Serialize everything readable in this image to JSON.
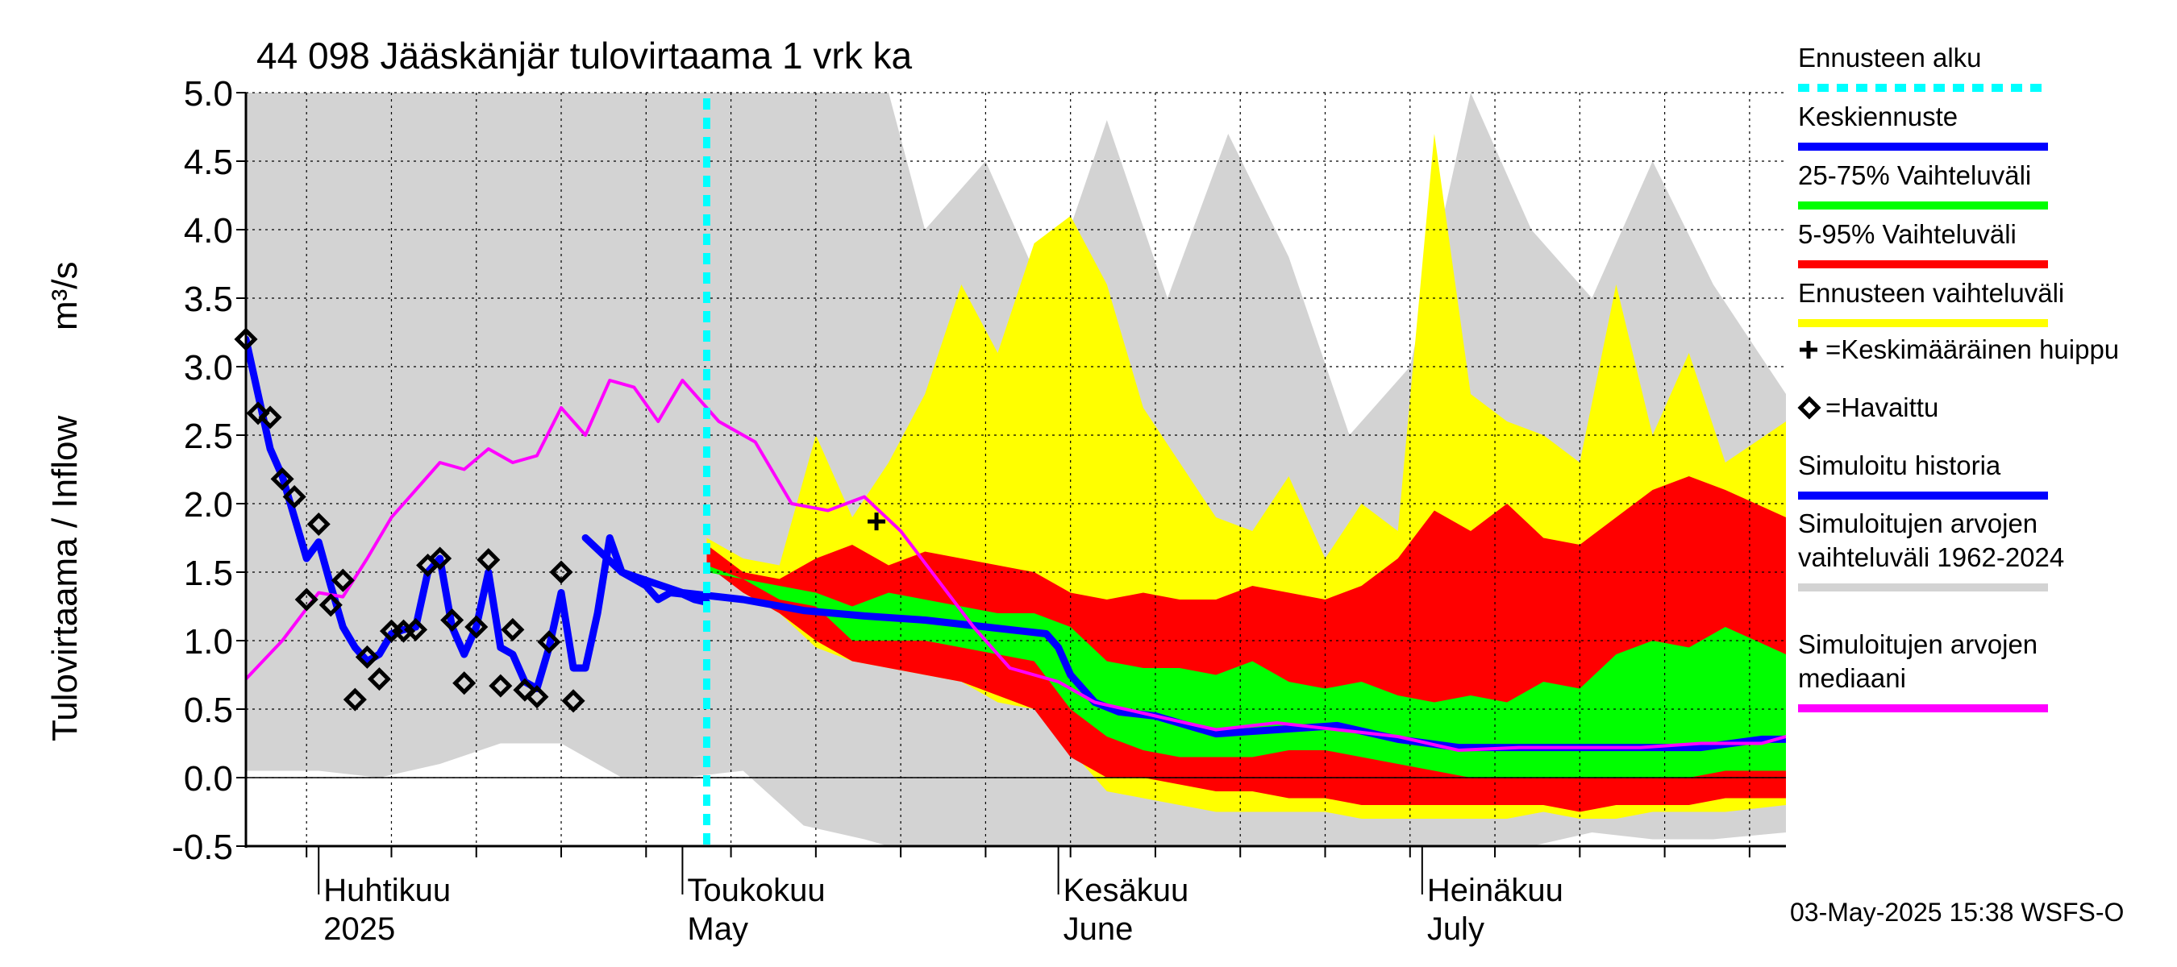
{
  "chart_data": {
    "type": "area",
    "title": "44 098 Jääskänjär tulovirtaama 1 vrk ka",
    "ylabel": "Tulovirtaama / Inflow",
    "yunit": "m³/s",
    "ylim": [
      -0.5,
      5.0
    ],
    "yticks": [
      "5.0",
      "4.5",
      "4.0",
      "3.5",
      "3.0",
      "2.5",
      "2.0",
      "1.5",
      "1.0",
      "0.5",
      "0.0",
      "-0.5"
    ],
    "xlim": [
      "2025-03-26",
      "2025-07-31"
    ],
    "grid": true,
    "legend_position": "right",
    "month_labels": [
      {
        "fi": "Huhtikuu",
        "en": "2025",
        "date": "2025-04-01"
      },
      {
        "fi": "Toukokuu",
        "en": "May",
        "date": "2025-05-01"
      },
      {
        "fi": "Kesäkuu",
        "en": "June",
        "date": "2025-06-01"
      },
      {
        "fi": "Heinäkuu",
        "en": "July",
        "date": "2025-07-01"
      }
    ],
    "forecast_start": "2025-05-03",
    "mean_peak": {
      "date": "2025-05-17",
      "value": 1.87
    },
    "observed": [
      {
        "date": "2025-03-26",
        "value": 3.2
      },
      {
        "date": "2025-03-27",
        "value": 2.66
      },
      {
        "date": "2025-03-28",
        "value": 2.63
      },
      {
        "date": "2025-03-29",
        "value": 2.18
      },
      {
        "date": "2025-03-30",
        "value": 2.05
      },
      {
        "date": "2025-03-31",
        "value": 1.3
      },
      {
        "date": "2025-04-01",
        "value": 1.85
      },
      {
        "date": "2025-04-02",
        "value": 1.26
      },
      {
        "date": "2025-04-03",
        "value": 1.44
      },
      {
        "date": "2025-04-04",
        "value": 0.57
      },
      {
        "date": "2025-04-05",
        "value": 0.88
      },
      {
        "date": "2025-04-06",
        "value": 0.72
      },
      {
        "date": "2025-04-07",
        "value": 1.07
      },
      {
        "date": "2025-04-08",
        "value": 1.07
      },
      {
        "date": "2025-04-09",
        "value": 1.08
      },
      {
        "date": "2025-04-10",
        "value": 1.55
      },
      {
        "date": "2025-04-11",
        "value": 1.6
      },
      {
        "date": "2025-04-12",
        "value": 1.15
      },
      {
        "date": "2025-04-13",
        "value": 0.69
      },
      {
        "date": "2025-04-14",
        "value": 1.1
      },
      {
        "date": "2025-04-15",
        "value": 1.59
      },
      {
        "date": "2025-04-16",
        "value": 0.67
      },
      {
        "date": "2025-04-17",
        "value": 1.08
      },
      {
        "date": "2025-04-18",
        "value": 0.64
      },
      {
        "date": "2025-04-19",
        "value": 0.59
      },
      {
        "date": "2025-04-20",
        "value": 0.99
      },
      {
        "date": "2025-04-21",
        "value": 1.5
      },
      {
        "date": "2025-04-22",
        "value": 0.56
      }
    ],
    "series": [
      {
        "name": "Simulated history",
        "label": "Simuloitu historia",
        "color": "#0000ff",
        "x": [
          "2025-03-26",
          "2025-03-27",
          "2025-03-28",
          "2025-03-29",
          "2025-03-30",
          "2025-03-31",
          "2025-04-01",
          "2025-04-02",
          "2025-04-03",
          "2025-04-04",
          "2025-04-05",
          "2025-04-06",
          "2025-04-07",
          "2025-04-08",
          "2025-04-09",
          "2025-04-10",
          "2025-04-11",
          "2025-04-12",
          "2025-04-13",
          "2025-04-14",
          "2025-04-15",
          "2025-04-16",
          "2025-04-17",
          "2025-04-18",
          "2025-04-19",
          "2025-04-20",
          "2025-04-21",
          "2025-04-22",
          "2025-04-23",
          "2025-04-24",
          "2025-04-25",
          "2025-04-26",
          "2025-04-27",
          "2025-04-28",
          "2025-04-29",
          "2025-04-30",
          "2025-05-01",
          "2025-05-02",
          "2025-05-03"
        ],
        "y": [
          3.2,
          2.8,
          2.4,
          2.2,
          1.9,
          1.6,
          1.72,
          1.4,
          1.1,
          0.95,
          0.85,
          0.9,
          1.05,
          1.08,
          1.1,
          1.5,
          1.6,
          1.1,
          0.9,
          1.1,
          1.5,
          0.95,
          0.9,
          0.7,
          0.65,
          0.95,
          1.35,
          0.8,
          0.8,
          1.2,
          1.75,
          1.5,
          1.45,
          1.4,
          1.3,
          1.35,
          1.34,
          1.3,
          1.28
        ]
      },
      {
        "name": "Forecast mean",
        "label": "Keskiennuste",
        "color": "#0000ff",
        "x": [
          "2025-04-23",
          "2025-04-26",
          "2025-05-01",
          "2025-05-06",
          "2025-05-11",
          "2025-05-16",
          "2025-05-21",
          "2025-05-26",
          "2025-05-31",
          "2025-06-01",
          "2025-06-02",
          "2025-06-04",
          "2025-06-06",
          "2025-06-09",
          "2025-06-14",
          "2025-06-19",
          "2025-06-24",
          "2025-06-29",
          "2025-07-04",
          "2025-07-09",
          "2025-07-14",
          "2025-07-19",
          "2025-07-24",
          "2025-07-29",
          "2025-07-31"
        ],
        "y": [
          1.75,
          1.5,
          1.35,
          1.3,
          1.22,
          1.18,
          1.15,
          1.1,
          1.05,
          0.95,
          0.75,
          0.55,
          0.48,
          0.45,
          0.32,
          0.35,
          0.38,
          0.28,
          0.22,
          0.22,
          0.22,
          0.22,
          0.22,
          0.28,
          0.28
        ]
      },
      {
        "name": "Simulated median 1962-2024",
        "label": "Simuloitujen arvojen mediaani",
        "color": "#ff00ff",
        "x": [
          "2025-03-26",
          "2025-03-29",
          "2025-04-01",
          "2025-04-03",
          "2025-04-05",
          "2025-04-07",
          "2025-04-09",
          "2025-04-11",
          "2025-04-13",
          "2025-04-15",
          "2025-04-17",
          "2025-04-19",
          "2025-04-21",
          "2025-04-23",
          "2025-04-25",
          "2025-04-27",
          "2025-04-29",
          "2025-05-01",
          "2025-05-04",
          "2025-05-07",
          "2025-05-10",
          "2025-05-13",
          "2025-05-16",
          "2025-05-19",
          "2025-05-22",
          "2025-05-25",
          "2025-05-28",
          "2025-06-01",
          "2025-06-04",
          "2025-06-09",
          "2025-06-14",
          "2025-06-19",
          "2025-06-24",
          "2025-06-29",
          "2025-07-04",
          "2025-07-09",
          "2025-07-14",
          "2025-07-19",
          "2025-07-24",
          "2025-07-29",
          "2025-07-31"
        ],
        "y": [
          0.72,
          1.0,
          1.35,
          1.32,
          1.6,
          1.9,
          2.1,
          2.3,
          2.25,
          2.4,
          2.3,
          2.35,
          2.7,
          2.5,
          2.9,
          2.85,
          2.6,
          2.9,
          2.6,
          2.45,
          2.0,
          1.95,
          2.05,
          1.8,
          1.45,
          1.1,
          0.8,
          0.7,
          0.55,
          0.45,
          0.35,
          0.4,
          0.35,
          0.3,
          0.2,
          0.22,
          0.22,
          0.22,
          0.25,
          0.25,
          0.3
        ]
      }
    ],
    "bands": [
      {
        "name": "Simulated range 1962-2024",
        "label": "Simuloitujen arvojen vaihteluväli 1962-2024",
        "color": "#d3d3d3",
        "x": [
          "2025-03-26",
          "2025-04-01",
          "2025-04-06",
          "2025-04-11",
          "2025-04-16",
          "2025-04-21",
          "2025-04-26",
          "2025-05-01",
          "2025-05-06",
          "2025-05-11",
          "2025-05-16",
          "2025-05-18",
          "2025-05-21",
          "2025-05-26",
          "2025-05-31",
          "2025-06-05",
          "2025-06-10",
          "2025-06-15",
          "2025-06-20",
          "2025-06-25",
          "2025-06-30",
          "2025-07-05",
          "2025-07-10",
          "2025-07-15",
          "2025-07-20",
          "2025-07-25",
          "2025-07-31"
        ],
        "low": [
          0.05,
          0.05,
          0.0,
          0.1,
          0.25,
          0.25,
          0.0,
          0.0,
          0.05,
          -0.35,
          -0.45,
          -0.5,
          -0.5,
          -0.5,
          -0.5,
          -0.5,
          -0.5,
          -0.5,
          -0.5,
          -0.5,
          -0.5,
          -0.5,
          -0.5,
          -0.4,
          -0.45,
          -0.45,
          -0.4
        ],
        "high": [
          5.0,
          5.0,
          5.0,
          5.0,
          5.0,
          5.0,
          5.0,
          5.0,
          5.0,
          5.0,
          5.0,
          5.0,
          4.0,
          4.5,
          3.5,
          4.8,
          3.5,
          4.7,
          3.8,
          2.5,
          3.0,
          5.0,
          4.0,
          3.5,
          4.5,
          3.6,
          2.8
        ]
      },
      {
        "name": "Forecast range",
        "label": "Ennusteen vaihteluväli",
        "color": "#ffff00",
        "x": [
          "2025-05-03",
          "2025-05-06",
          "2025-05-09",
          "2025-05-12",
          "2025-05-15",
          "2025-05-18",
          "2025-05-21",
          "2025-05-24",
          "2025-05-27",
          "2025-05-30",
          "2025-06-02",
          "2025-06-05",
          "2025-06-08",
          "2025-06-11",
          "2025-06-14",
          "2025-06-17",
          "2025-06-20",
          "2025-06-23",
          "2025-06-26",
          "2025-06-29",
          "2025-07-02",
          "2025-07-05",
          "2025-07-08",
          "2025-07-11",
          "2025-07-14",
          "2025-07-17",
          "2025-07-20",
          "2025-07-23",
          "2025-07-26",
          "2025-07-31"
        ],
        "low": [
          1.6,
          1.35,
          1.2,
          0.95,
          0.85,
          0.8,
          0.75,
          0.7,
          0.55,
          0.5,
          0.2,
          -0.1,
          -0.15,
          -0.2,
          -0.25,
          -0.25,
          -0.25,
          -0.25,
          -0.3,
          -0.3,
          -0.3,
          -0.3,
          -0.3,
          -0.25,
          -0.3,
          -0.3,
          -0.25,
          -0.25,
          -0.25,
          -0.2
        ],
        "high": [
          1.75,
          1.6,
          1.55,
          2.5,
          1.9,
          2.3,
          2.8,
          3.6,
          3.1,
          3.9,
          4.1,
          3.6,
          2.7,
          2.3,
          1.9,
          1.8,
          2.2,
          1.6,
          2.0,
          1.8,
          4.7,
          2.8,
          2.6,
          2.5,
          2.3,
          3.6,
          2.5,
          3.1,
          2.3,
          2.6
        ]
      },
      {
        "name": "5-95% range",
        "label": "5-95% Vaihteluväli",
        "color": "#ff0000",
        "x": [
          "2025-05-03",
          "2025-05-06",
          "2025-05-09",
          "2025-05-12",
          "2025-05-15",
          "2025-05-18",
          "2025-05-21",
          "2025-05-24",
          "2025-05-27",
          "2025-05-30",
          "2025-06-02",
          "2025-06-05",
          "2025-06-08",
          "2025-06-11",
          "2025-06-14",
          "2025-06-17",
          "2025-06-20",
          "2025-06-23",
          "2025-06-26",
          "2025-06-29",
          "2025-07-02",
          "2025-07-05",
          "2025-07-08",
          "2025-07-11",
          "2025-07-14",
          "2025-07-17",
          "2025-07-20",
          "2025-07-23",
          "2025-07-26",
          "2025-07-31"
        ],
        "low": [
          1.55,
          1.35,
          1.2,
          1.0,
          0.85,
          0.8,
          0.75,
          0.7,
          0.6,
          0.5,
          0.15,
          0.0,
          0.0,
          -0.05,
          -0.1,
          -0.1,
          -0.15,
          -0.15,
          -0.2,
          -0.2,
          -0.2,
          -0.2,
          -0.2,
          -0.2,
          -0.25,
          -0.2,
          -0.2,
          -0.2,
          -0.15,
          -0.15
        ],
        "high": [
          1.7,
          1.5,
          1.45,
          1.6,
          1.7,
          1.55,
          1.65,
          1.6,
          1.55,
          1.5,
          1.35,
          1.3,
          1.35,
          1.3,
          1.3,
          1.4,
          1.35,
          1.3,
          1.4,
          1.6,
          1.95,
          1.8,
          2.0,
          1.75,
          1.7,
          1.9,
          2.1,
          2.2,
          2.1,
          1.9
        ]
      },
      {
        "name": "25-75% range",
        "label": "25-75% Vaihteluväli",
        "color": "#00ff00",
        "x": [
          "2025-05-03",
          "2025-05-06",
          "2025-05-09",
          "2025-05-12",
          "2025-05-15",
          "2025-05-18",
          "2025-05-21",
          "2025-05-24",
          "2025-05-27",
          "2025-05-30",
          "2025-06-02",
          "2025-06-05",
          "2025-06-08",
          "2025-06-11",
          "2025-06-14",
          "2025-06-17",
          "2025-06-20",
          "2025-06-23",
          "2025-06-26",
          "2025-06-29",
          "2025-07-02",
          "2025-07-05",
          "2025-07-08",
          "2025-07-11",
          "2025-07-14",
          "2025-07-17",
          "2025-07-20",
          "2025-07-23",
          "2025-07-26",
          "2025-07-31"
        ],
        "low": [
          1.5,
          1.45,
          1.3,
          1.25,
          1.0,
          1.0,
          1.0,
          0.95,
          0.9,
          0.85,
          0.5,
          0.3,
          0.2,
          0.15,
          0.15,
          0.15,
          0.2,
          0.2,
          0.15,
          0.1,
          0.05,
          0.0,
          0.0,
          0.0,
          0.0,
          0.0,
          0.0,
          0.0,
          0.05,
          0.05
        ],
        "high": [
          1.55,
          1.45,
          1.4,
          1.35,
          1.25,
          1.35,
          1.3,
          1.25,
          1.2,
          1.2,
          1.1,
          0.85,
          0.8,
          0.8,
          0.75,
          0.85,
          0.7,
          0.65,
          0.7,
          0.6,
          0.55,
          0.6,
          0.55,
          0.7,
          0.65,
          0.9,
          1.0,
          0.95,
          1.1,
          0.9
        ]
      }
    ]
  },
  "legend": {
    "items": [
      {
        "label": "Ennusteen alku",
        "color": "#00ffff",
        "style": "dotted"
      },
      {
        "label": "Keskiennuste",
        "color": "#0000ff",
        "style": "line"
      },
      {
        "label": "25-75% Vaihteluväli",
        "color": "#00ff00",
        "style": "line"
      },
      {
        "label": "5-95% Vaihteluväli",
        "color": "#ff0000",
        "style": "line"
      },
      {
        "label": "Ennusteen vaihteluväli",
        "color": "#ffff00",
        "style": "line"
      },
      {
        "label": "=Keskimääräinen huippu",
        "marker": "plus"
      },
      {
        "label": "=Havaittu",
        "marker": "diamond"
      },
      {
        "label": "Simuloitu historia",
        "color": "#0000ff",
        "style": "line"
      },
      {
        "label": "Simuloitujen arvojen vaihteluväli 1962-2024",
        "color": "#d3d3d3",
        "style": "line"
      },
      {
        "label": "Simuloitujen arvojen mediaani",
        "color": "#ff00ff",
        "style": "line"
      }
    ]
  },
  "footer": {
    "timestamp": "03-May-2025 15:38 WSFS-O"
  }
}
